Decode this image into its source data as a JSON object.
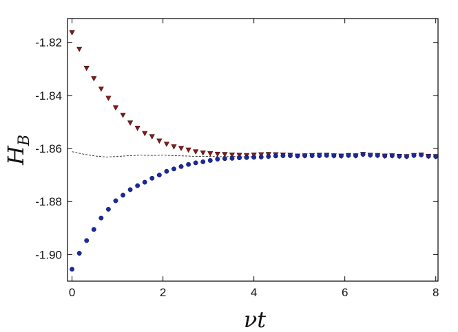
{
  "chart_data": {
    "type": "scatter",
    "title": "",
    "xlabel": "νt",
    "ylabel": "H",
    "ylabel_subscript": "B",
    "xlim": [
      -0.1,
      8.05
    ],
    "ylim": [
      -1.91,
      -1.811
    ],
    "x_ticks": [
      0,
      2,
      4,
      6,
      8
    ],
    "x_tick_labels": [
      "0",
      "2",
      "4",
      "6",
      "8"
    ],
    "y_ticks": [
      -1.82,
      -1.84,
      -1.86,
      -1.88,
      -1.9
    ],
    "y_tick_labels": [
      "-1.82",
      "-1.84",
      "-1.86",
      "-1.88",
      "-1.90"
    ],
    "grid": false,
    "series": [
      {
        "marker": "triangle-down",
        "color": "#8b1a1a",
        "x": [
          0,
          0.16,
          0.32,
          0.48,
          0.64,
          0.8,
          0.96,
          1.12,
          1.28,
          1.44,
          1.6,
          1.76,
          1.92,
          2.08,
          2.24,
          2.4,
          2.56,
          2.72,
          2.88,
          3.04,
          3.2,
          3.36,
          3.52,
          3.68,
          3.84,
          4.0,
          4.16,
          4.32,
          4.48,
          4.64,
          4.8,
          4.96,
          5.12,
          5.28,
          5.44,
          5.6,
          5.76,
          5.92,
          6.08,
          6.24,
          6.4,
          6.56,
          6.72,
          6.88,
          7.04,
          7.2,
          7.36,
          7.52,
          7.68,
          7.84,
          8.0
        ],
        "y": [
          -1.8163,
          -1.8225,
          -1.8297,
          -1.8336,
          -1.8375,
          -1.841,
          -1.8446,
          -1.8474,
          -1.8503,
          -1.8523,
          -1.8543,
          -1.8555,
          -1.8571,
          -1.8583,
          -1.8593,
          -1.8599,
          -1.8605,
          -1.8612,
          -1.8616,
          -1.8619,
          -1.8621,
          -1.8622,
          -1.8624,
          -1.8625,
          -1.8626,
          -1.8624,
          -1.8623,
          -1.8622,
          -1.8623,
          -1.8624,
          -1.8625,
          -1.8628,
          -1.8627,
          -1.8626,
          -1.8625,
          -1.8625,
          -1.8627,
          -1.8628,
          -1.8626,
          -1.8627,
          -1.8622,
          -1.8625,
          -1.8626,
          -1.8628,
          -1.8627,
          -1.8629,
          -1.863,
          -1.8626,
          -1.8624,
          -1.8629,
          -1.863
        ]
      },
      {
        "marker": "circle",
        "color": "#1a2a9e",
        "x": [
          0,
          0.16,
          0.32,
          0.48,
          0.64,
          0.8,
          0.96,
          1.12,
          1.28,
          1.44,
          1.6,
          1.76,
          1.92,
          2.08,
          2.24,
          2.4,
          2.56,
          2.72,
          2.88,
          3.04,
          3.2,
          3.36,
          3.52,
          3.68,
          3.84,
          4.0,
          4.16,
          4.32,
          4.48,
          4.64,
          4.8,
          4.96,
          5.12,
          5.28,
          5.44,
          5.6,
          5.76,
          5.92,
          6.08,
          6.24,
          6.4,
          6.56,
          6.72,
          6.88,
          7.04,
          7.2,
          7.36,
          7.52,
          7.68,
          7.84,
          8.0
        ],
        "y": [
          -1.9055,
          -1.8995,
          -1.8947,
          -1.8905,
          -1.8862,
          -1.8829,
          -1.8797,
          -1.8776,
          -1.8755,
          -1.874,
          -1.8727,
          -1.8712,
          -1.87,
          -1.8686,
          -1.8677,
          -1.8668,
          -1.866,
          -1.8654,
          -1.865,
          -1.8645,
          -1.864,
          -1.8638,
          -1.8637,
          -1.8635,
          -1.8634,
          -1.8633,
          -1.8632,
          -1.863,
          -1.8628,
          -1.8627,
          -1.8627,
          -1.8628,
          -1.8627,
          -1.8627,
          -1.8627,
          -1.8626,
          -1.8627,
          -1.8628,
          -1.8626,
          -1.8627,
          -1.8622,
          -1.8625,
          -1.8626,
          -1.8628,
          -1.8627,
          -1.8629,
          -1.863,
          -1.8626,
          -1.8624,
          -1.8629,
          -1.863
        ]
      },
      {
        "marker": "dashed-line",
        "color": "#222222",
        "x": [
          0,
          0.25,
          0.5,
          0.75,
          1.0,
          1.25,
          1.5,
          1.75,
          2.0,
          2.25,
          2.5,
          2.75,
          3.0,
          3.25,
          3.5,
          3.75,
          4.0
        ],
        "y": [
          -1.8612,
          -1.8621,
          -1.8628,
          -1.8632,
          -1.863,
          -1.8627,
          -1.8625,
          -1.8626,
          -1.8625,
          -1.8627,
          -1.8628,
          -1.863,
          -1.863,
          -1.8631,
          -1.863,
          -1.8631,
          -1.8631
        ]
      }
    ]
  }
}
